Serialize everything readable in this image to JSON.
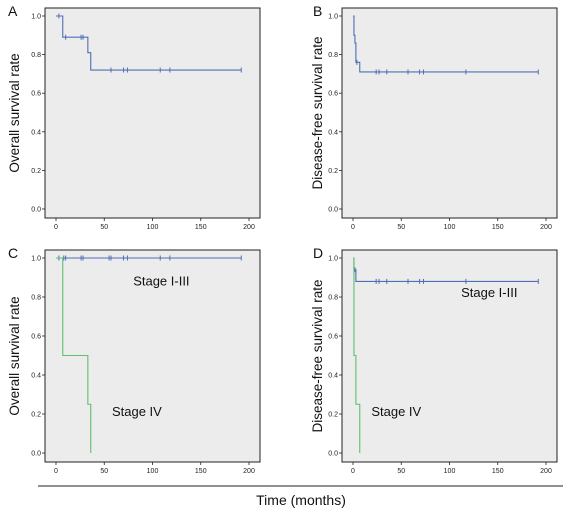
{
  "figure": {
    "xlabel": "Time (months)"
  },
  "chart_data": [
    {
      "panel": "A",
      "type": "line",
      "ylabel": "Overall survival rate",
      "xlim": [
        0,
        200
      ],
      "ylim": [
        0,
        1.0
      ],
      "xticks": [
        0,
        50,
        100,
        150,
        200
      ],
      "yticks": [
        0.0,
        0.2,
        0.4,
        0.6,
        0.8,
        1.0
      ],
      "ytick_labels": [
        "0.0",
        "0.2",
        "0.4",
        "0.6",
        "0.8",
        "1.0"
      ],
      "annotations": [],
      "series": [
        {
          "color": "#4f6fb5",
          "steps": [
            [
              0,
              1.0
            ],
            [
              7,
              0.89
            ],
            [
              33,
              0.81
            ],
            [
              36,
              0.72
            ],
            [
              192,
              0.72
            ]
          ],
          "censored": [
            [
              3,
              1.0
            ],
            [
              10,
              0.89
            ],
            [
              26,
              0.89
            ],
            [
              28,
              0.89
            ],
            [
              57,
              0.72
            ],
            [
              70,
              0.72
            ],
            [
              74,
              0.72
            ],
            [
              108,
              0.72
            ],
            [
              118,
              0.72
            ],
            [
              192,
              0.72
            ]
          ]
        }
      ]
    },
    {
      "panel": "B",
      "type": "line",
      "ylabel": "Disease-free survival rate",
      "xlim": [
        0,
        200
      ],
      "ylim": [
        0,
        1.0
      ],
      "xticks": [
        0,
        50,
        100,
        150,
        200
      ],
      "yticks": [
        0.0,
        0.2,
        0.4,
        0.6,
        0.8,
        1.0
      ],
      "ytick_labels": [
        "0.0",
        "0.2",
        "0.4",
        "0.6",
        "0.8",
        "1.0"
      ],
      "annotations": [],
      "series": [
        {
          "color": "#4f6fb5",
          "steps": [
            [
              0,
              1.0
            ],
            [
              1,
              0.9
            ],
            [
              2,
              0.86
            ],
            [
              3,
              0.76
            ],
            [
              7,
              0.71
            ],
            [
              192,
              0.71
            ]
          ],
          "censored": [
            [
              4,
              0.76
            ],
            [
              24,
              0.71
            ],
            [
              27,
              0.71
            ],
            [
              35,
              0.71
            ],
            [
              57,
              0.71
            ],
            [
              69,
              0.71
            ],
            [
              73,
              0.71
            ],
            [
              117,
              0.71
            ],
            [
              192,
              0.71
            ]
          ]
        }
      ]
    },
    {
      "panel": "C",
      "type": "line",
      "ylabel": "Overall survival rate",
      "xlim": [
        0,
        200
      ],
      "ylim": [
        0,
        1.0
      ],
      "xticks": [
        0,
        50,
        100,
        150,
        200
      ],
      "yticks": [
        0.0,
        0.2,
        0.4,
        0.6,
        0.8,
        1.0
      ],
      "ytick_labels": [
        "0.0",
        "0.2",
        "0.4",
        "0.6",
        "0.8",
        "1.0"
      ],
      "annotations": [
        {
          "text": "Stage I-III",
          "at": [
            80,
            0.86
          ]
        },
        {
          "text": "Stage IV",
          "at": [
            58,
            0.19
          ]
        }
      ],
      "series": [
        {
          "name": "Stage I-III",
          "color": "#4f6fb5",
          "steps": [
            [
              0,
              1.0
            ],
            [
              192,
              1.0
            ]
          ],
          "censored": [
            [
              3,
              1.0
            ],
            [
              8,
              1.0
            ],
            [
              10,
              1.0
            ],
            [
              26,
              1.0
            ],
            [
              28,
              1.0
            ],
            [
              55,
              1.0
            ],
            [
              57,
              1.0
            ],
            [
              70,
              1.0
            ],
            [
              74,
              1.0
            ],
            [
              108,
              1.0
            ],
            [
              118,
              1.0
            ],
            [
              192,
              1.0
            ]
          ]
        },
        {
          "name": "Stage IV",
          "color": "#5fbf6f",
          "steps": [
            [
              0,
              1.0
            ],
            [
              7,
              0.5
            ],
            [
              33,
              0.25
            ],
            [
              36,
              0.0
            ]
          ],
          "censored": []
        }
      ]
    },
    {
      "panel": "D",
      "type": "line",
      "ylabel": "Disease-free survival rate",
      "xlim": [
        0,
        200
      ],
      "ylim": [
        0,
        1.0
      ],
      "xticks": [
        0,
        50,
        100,
        150,
        200
      ],
      "yticks": [
        0.0,
        0.2,
        0.4,
        0.6,
        0.8,
        1.0
      ],
      "ytick_labels": [
        "0.0",
        "0.2",
        "0.4",
        "0.6",
        "0.8",
        "1.0"
      ],
      "annotations": [
        {
          "text": "Stage I-III",
          "at": [
            112,
            0.8
          ]
        },
        {
          "text": "Stage IV",
          "at": [
            19,
            0.19
          ]
        }
      ],
      "series": [
        {
          "name": "Stage I-III",
          "color": "#4f6fb5",
          "steps": [
            [
              0,
              1.0
            ],
            [
              1,
              0.94
            ],
            [
              3,
              0.88
            ],
            [
              192,
              0.88
            ]
          ],
          "censored": [
            [
              2,
              0.94
            ],
            [
              24,
              0.88
            ],
            [
              27,
              0.88
            ],
            [
              35,
              0.88
            ],
            [
              57,
              0.88
            ],
            [
              69,
              0.88
            ],
            [
              73,
              0.88
            ],
            [
              117,
              0.88
            ],
            [
              192,
              0.88
            ]
          ]
        },
        {
          "name": "Stage IV",
          "color": "#5fbf6f",
          "steps": [
            [
              0,
              1.0
            ],
            [
              1,
              0.5
            ],
            [
              3,
              0.25
            ],
            [
              7,
              0.0
            ]
          ],
          "censored": []
        }
      ]
    }
  ]
}
